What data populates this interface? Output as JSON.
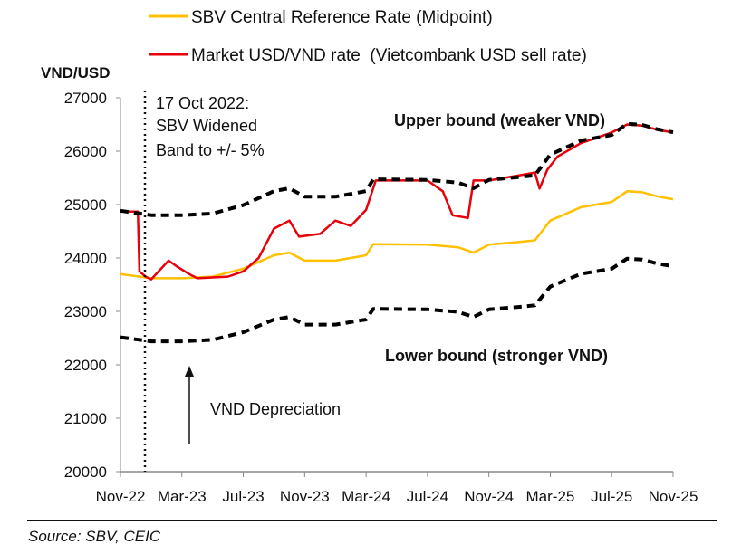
{
  "chart_data": {
    "type": "line",
    "ylabel": "VND/USD",
    "ylim": [
      20000,
      27000
    ],
    "yticks": [
      "20000",
      "21000",
      "22000",
      "23000",
      "24000",
      "25000",
      "26000",
      "27000"
    ],
    "xlim": [
      "2022-11-01",
      "2025-11-01"
    ],
    "xticks": [
      {
        "label": "Nov-22",
        "date": "2022-11-01"
      },
      {
        "label": "Mar-23",
        "date": "2023-03-01"
      },
      {
        "label": "Jul-23",
        "date": "2023-07-01"
      },
      {
        "label": "Nov-23",
        "date": "2023-11-01"
      },
      {
        "label": "Mar-24",
        "date": "2024-03-01"
      },
      {
        "label": "Jul-24",
        "date": "2024-07-01"
      },
      {
        "label": "Nov-24",
        "date": "2024-11-01"
      },
      {
        "label": "Mar-25",
        "date": "2025-03-01"
      },
      {
        "label": "Jul-25",
        "date": "2025-07-01"
      },
      {
        "label": "Nov-25",
        "date": "2025-11-01"
      }
    ],
    "grid": false,
    "legend_position": "top",
    "series": [
      {
        "name": "SBV Central Reference Rate (Midpoint)",
        "color": "#FFC000",
        "style": "solid",
        "x": [
          "2022-11-01",
          "2023-01-01",
          "2023-03-01",
          "2023-05-01",
          "2023-07-01",
          "2023-09-01",
          "2023-10-01",
          "2023-11-01",
          "2024-01-01",
          "2024-02-01",
          "2024-03-01",
          "2024-03-15",
          "2024-07-01",
          "2024-09-01",
          "2024-10-01",
          "2024-11-01",
          "2025-01-01",
          "2025-02-01",
          "2025-03-01",
          "2025-05-01",
          "2025-07-01",
          "2025-08-01",
          "2025-09-01",
          "2025-10-01",
          "2025-11-01"
        ],
        "y": [
          23700,
          23620,
          23620,
          23650,
          23800,
          24050,
          24100,
          23950,
          23950,
          24000,
          24050,
          24260,
          24250,
          24200,
          24100,
          24250,
          24300,
          24330,
          24700,
          24950,
          25050,
          25250,
          25230,
          25150,
          25100
        ]
      },
      {
        "name": "Market USD/VND rate  (Vietcombank USD sell rate)",
        "color": "#E8000B",
        "style": "solid",
        "x": [
          "2022-11-01",
          "2022-12-05",
          "2022-12-08",
          "2022-12-20",
          "2023-01-01",
          "2023-02-05",
          "2023-02-20",
          "2023-03-15",
          "2023-04-01",
          "2023-06-01",
          "2023-07-01",
          "2023-08-01",
          "2023-09-01",
          "2023-10-01",
          "2023-10-20",
          "2023-12-01",
          "2024-01-01",
          "2024-02-01",
          "2024-03-01",
          "2024-03-20",
          "2024-07-01",
          "2024-08-01",
          "2024-08-20",
          "2024-09-20",
          "2024-10-01",
          "2024-11-01",
          "2025-01-01",
          "2025-02-01",
          "2025-02-10",
          "2025-02-25",
          "2025-03-15",
          "2025-05-01",
          "2025-07-01",
          "2025-08-01",
          "2025-09-01",
          "2025-10-01",
          "2025-11-01"
        ],
        "y": [
          24870,
          24870,
          23750,
          23650,
          23600,
          23950,
          23850,
          23700,
          23620,
          23650,
          23750,
          24000,
          24550,
          24700,
          24400,
          24450,
          24700,
          24600,
          24900,
          25450,
          25450,
          25250,
          24800,
          24750,
          25450,
          25450,
          25550,
          25600,
          25300,
          25650,
          25900,
          26150,
          26350,
          26500,
          26480,
          26400,
          26350
        ]
      },
      {
        "color": "#000000",
        "style": "dashed",
        "x": [
          "2022-11-01",
          "2023-01-01",
          "2023-03-01",
          "2023-05-01",
          "2023-07-01",
          "2023-09-01",
          "2023-10-01",
          "2023-11-01",
          "2024-01-01",
          "2024-02-01",
          "2024-03-01",
          "2024-03-15",
          "2024-07-01",
          "2024-09-01",
          "2024-10-01",
          "2024-11-01",
          "2025-01-01",
          "2025-02-01",
          "2025-03-01",
          "2025-05-01",
          "2025-07-01",
          "2025-08-01",
          "2025-09-01",
          "2025-10-01",
          "2025-11-01"
        ],
        "y": [
          24885,
          24801,
          24801,
          24833,
          24990,
          25253,
          25305,
          25148,
          25148,
          25200,
          25253,
          25473,
          25463,
          25410,
          25305,
          25463,
          25515,
          25547,
          25935,
          26198,
          26303,
          26513,
          26492,
          26408,
          26355
        ]
      },
      {
        "color": "#000000",
        "style": "dashed",
        "x": [
          "2022-11-01",
          "2023-01-01",
          "2023-03-01",
          "2023-05-01",
          "2023-07-01",
          "2023-09-01",
          "2023-10-01",
          "2023-11-01",
          "2024-01-01",
          "2024-02-01",
          "2024-03-01",
          "2024-03-15",
          "2024-07-01",
          "2024-09-01",
          "2024-10-01",
          "2024-11-01",
          "2025-01-01",
          "2025-02-01",
          "2025-03-01",
          "2025-05-01",
          "2025-07-01",
          "2025-08-01",
          "2025-09-01",
          "2025-10-01",
          "2025-11-01"
        ],
        "y": [
          22515,
          22439,
          22439,
          22468,
          22610,
          22848,
          22895,
          22753,
          22753,
          22800,
          22848,
          23047,
          23038,
          22990,
          22895,
          23038,
          23085,
          23114,
          23465,
          23703,
          23798,
          23988,
          23969,
          23893,
          23845
        ]
      }
    ],
    "annotations": {
      "event_line1": "17 Oct 2022:",
      "event_line2": "SBV Widened",
      "event_line3": "Band to +/- 5%",
      "upper": "Upper bound (weaker VND)",
      "lower": "Lower bound (stronger VND)",
      "depreciation": "VND Depreciation"
    }
  },
  "source": "Source: SBV, CEIC"
}
